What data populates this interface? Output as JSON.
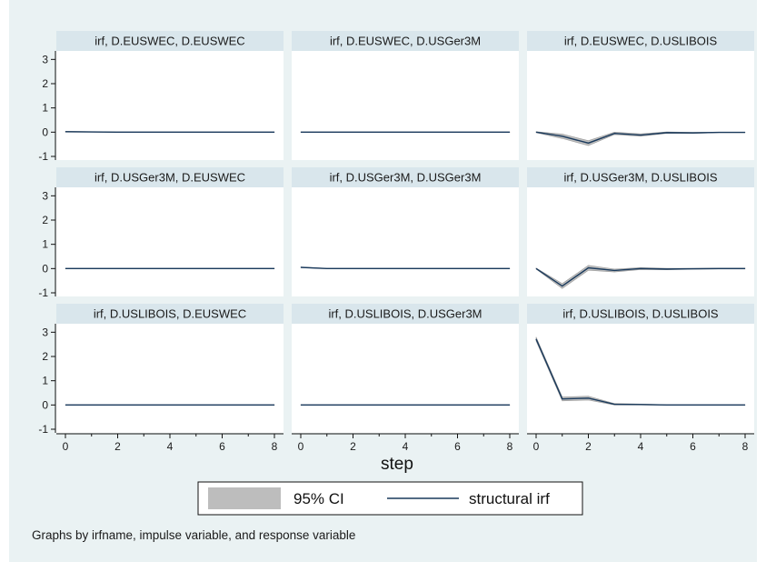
{
  "chart_data": {
    "type": "line",
    "xlabel": "step",
    "x": [
      0,
      1,
      2,
      3,
      4,
      5,
      6,
      7,
      8
    ],
    "xticks": [
      0,
      2,
      4,
      6,
      8
    ],
    "yticks": [
      -1,
      0,
      1,
      2,
      3
    ],
    "xlim": [
      0,
      8
    ],
    "ylim": [
      -1.15,
      3.35
    ],
    "legend": {
      "position": "bottom",
      "items": [
        {
          "label": "95% CI",
          "kind": "band",
          "color": "#bdbdbd"
        },
        {
          "label": "structural irf",
          "kind": "line",
          "color": "#1a3a5c"
        }
      ]
    },
    "note": "Graphs by irfname, impulse variable, and response variable",
    "colors": {
      "background": "#eaf2f3",
      "panel": "#ffffff",
      "header": "#d9e6ec",
      "line": "#1a3a5c",
      "band": "#a9a9a9"
    },
    "panels": [
      {
        "title": "irf, D.EUSWEC, D.EUSWEC",
        "irf": [
          0.02,
          0.01,
          0.0,
          0.0,
          0.0,
          0.0,
          0.0,
          0.0,
          0.0
        ],
        "lower": [
          0.0,
          0.0,
          -0.01,
          -0.01,
          -0.01,
          -0.01,
          -0.01,
          -0.01,
          -0.01
        ],
        "upper": [
          0.04,
          0.02,
          0.01,
          0.01,
          0.01,
          0.01,
          0.01,
          0.01,
          0.01
        ]
      },
      {
        "title": "irf, D.EUSWEC, D.USGer3M",
        "irf": [
          0.0,
          0.0,
          0.0,
          0.0,
          0.0,
          0.0,
          0.0,
          0.0,
          0.0
        ],
        "lower": [
          -0.01,
          -0.01,
          -0.01,
          -0.01,
          -0.01,
          -0.01,
          -0.01,
          -0.01,
          -0.01
        ],
        "upper": [
          0.01,
          0.01,
          0.01,
          0.01,
          0.01,
          0.01,
          0.01,
          0.01,
          0.01
        ]
      },
      {
        "title": "irf, D.EUSWEC, D.USLIBOIS",
        "irf": [
          0.0,
          -0.17,
          -0.45,
          -0.05,
          -0.12,
          -0.02,
          -0.03,
          -0.01,
          -0.01
        ],
        "lower": [
          -0.02,
          -0.26,
          -0.55,
          -0.1,
          -0.17,
          -0.05,
          -0.05,
          -0.02,
          -0.02
        ],
        "upper": [
          0.02,
          -0.08,
          -0.35,
          0.0,
          -0.07,
          0.01,
          -0.01,
          0.0,
          0.0
        ]
      },
      {
        "title": "irf, D.USGer3M, D.EUSWEC",
        "irf": [
          0.0,
          0.0,
          0.0,
          0.0,
          0.0,
          0.0,
          0.0,
          0.0,
          0.0
        ],
        "lower": [
          -0.01,
          -0.01,
          -0.01,
          -0.01,
          -0.01,
          -0.01,
          -0.01,
          -0.01,
          -0.01
        ],
        "upper": [
          0.01,
          0.01,
          0.01,
          0.01,
          0.01,
          0.01,
          0.01,
          0.01,
          0.01
        ]
      },
      {
        "title": "irf, D.USGer3M, D.USGer3M",
        "irf": [
          0.05,
          0.0,
          0.0,
          0.0,
          0.0,
          0.0,
          0.0,
          0.0,
          0.0
        ],
        "lower": [
          0.04,
          -0.01,
          -0.01,
          -0.01,
          -0.01,
          -0.01,
          -0.01,
          -0.01,
          -0.01
        ],
        "upper": [
          0.06,
          0.01,
          0.01,
          0.01,
          0.01,
          0.01,
          0.01,
          0.01,
          0.01
        ]
      },
      {
        "title": "irf, D.USGer3M, D.USLIBOIS",
        "irf": [
          0.0,
          -0.72,
          0.03,
          -0.08,
          0.0,
          -0.02,
          -0.01,
          0.0,
          0.0
        ],
        "lower": [
          -0.02,
          -0.82,
          -0.07,
          -0.14,
          -0.04,
          -0.05,
          -0.03,
          -0.02,
          -0.02
        ],
        "upper": [
          0.02,
          -0.62,
          0.13,
          -0.02,
          0.04,
          0.01,
          0.01,
          0.02,
          0.02
        ]
      },
      {
        "title": "irf, D.USLIBOIS, D.EUSWEC",
        "irf": [
          0.0,
          0.0,
          0.0,
          0.0,
          0.0,
          0.0,
          0.0,
          0.0,
          0.0
        ],
        "lower": [
          -0.01,
          -0.01,
          -0.01,
          -0.01,
          -0.01,
          -0.01,
          -0.01,
          -0.01,
          -0.01
        ],
        "upper": [
          0.01,
          0.01,
          0.01,
          0.01,
          0.01,
          0.01,
          0.01,
          0.01,
          0.01
        ]
      },
      {
        "title": "irf, D.USLIBOIS, D.USGer3M",
        "irf": [
          0.0,
          0.0,
          0.0,
          0.0,
          0.0,
          0.0,
          0.0,
          0.0,
          0.0
        ],
        "lower": [
          -0.01,
          -0.01,
          -0.01,
          -0.01,
          -0.01,
          -0.01,
          -0.01,
          -0.01,
          -0.01
        ],
        "upper": [
          0.01,
          0.01,
          0.01,
          0.01,
          0.01,
          0.01,
          0.01,
          0.01,
          0.01
        ]
      },
      {
        "title": "irf, D.USLIBOIS, D.USLIBOIS",
        "irf": [
          2.72,
          0.25,
          0.28,
          0.03,
          0.02,
          0.0,
          0.0,
          0.0,
          0.0
        ],
        "lower": [
          2.64,
          0.17,
          0.2,
          0.0,
          0.0,
          -0.01,
          -0.01,
          -0.01,
          -0.01
        ],
        "upper": [
          2.8,
          0.33,
          0.36,
          0.06,
          0.04,
          0.01,
          0.01,
          0.01,
          0.01
        ]
      }
    ]
  }
}
